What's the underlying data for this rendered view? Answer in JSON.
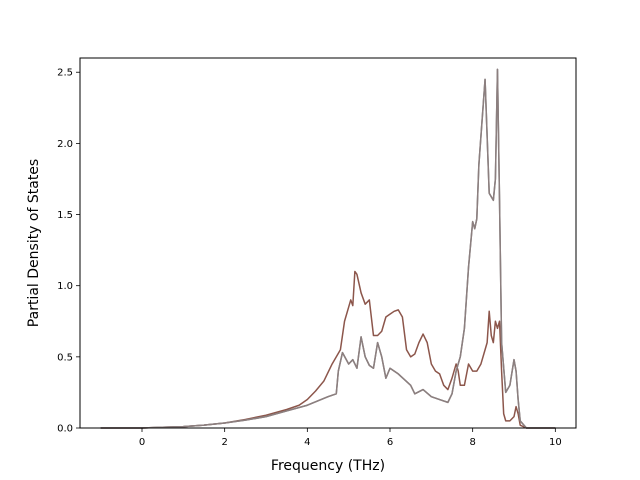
{
  "chart_data": {
    "type": "line",
    "title": "",
    "xlabel": "Frequency (THz)",
    "ylabel": "Partial Density of States",
    "xlim": [
      -1.5,
      10.5
    ],
    "ylim": [
      0.0,
      2.6
    ],
    "xticks": [
      0,
      2,
      4,
      6,
      8,
      10
    ],
    "yticks": [
      0.0,
      0.5,
      1.0,
      1.5,
      2.0,
      2.5
    ],
    "xtick_labels": [
      "0",
      "2",
      "4",
      "6",
      "8",
      "10"
    ],
    "ytick_labels": [
      "0.0",
      "0.5",
      "1.0",
      "1.5",
      "2.0",
      "2.5"
    ],
    "grid": false,
    "legend": false,
    "series": [
      {
        "color": "#8c564b",
        "x": [
          -1,
          0,
          0.5,
          1,
          1.5,
          2,
          2.5,
          3,
          3.5,
          3.8,
          4,
          4.2,
          4.4,
          4.6,
          4.8,
          4.9,
          5.0,
          5.05,
          5.1,
          5.15,
          5.2,
          5.3,
          5.4,
          5.5,
          5.6,
          5.7,
          5.8,
          5.9,
          6.0,
          6.1,
          6.2,
          6.3,
          6.4,
          6.5,
          6.6,
          6.7,
          6.8,
          6.9,
          7.0,
          7.1,
          7.2,
          7.3,
          7.4,
          7.5,
          7.6,
          7.65,
          7.7,
          7.8,
          7.9,
          8.0,
          8.1,
          8.2,
          8.3,
          8.35,
          8.4,
          8.45,
          8.5,
          8.55,
          8.6,
          8.65,
          8.7,
          8.75,
          8.8,
          8.9,
          9.0,
          9.05,
          9.1,
          9.15,
          9.3,
          10.0
        ],
        "y": [
          0.0,
          0.0,
          0.005,
          0.01,
          0.02,
          0.035,
          0.06,
          0.09,
          0.13,
          0.16,
          0.2,
          0.26,
          0.33,
          0.45,
          0.55,
          0.75,
          0.85,
          0.9,
          0.86,
          1.1,
          1.08,
          0.95,
          0.87,
          0.9,
          0.65,
          0.65,
          0.68,
          0.78,
          0.8,
          0.82,
          0.83,
          0.78,
          0.55,
          0.5,
          0.52,
          0.6,
          0.66,
          0.6,
          0.45,
          0.4,
          0.38,
          0.3,
          0.27,
          0.35,
          0.45,
          0.4,
          0.3,
          0.3,
          0.45,
          0.4,
          0.4,
          0.45,
          0.55,
          0.6,
          0.82,
          0.65,
          0.6,
          0.75,
          0.7,
          0.75,
          0.4,
          0.1,
          0.05,
          0.05,
          0.08,
          0.15,
          0.1,
          0.02,
          0.0,
          0.0
        ]
      },
      {
        "color": "#7f7f7f",
        "x": [
          -1,
          0,
          0.5,
          1,
          1.5,
          2,
          2.5,
          3,
          3.5,
          4,
          4.5,
          4.7,
          4.75,
          4.85,
          5.0,
          5.1,
          5.2,
          5.3,
          5.4,
          5.5,
          5.6,
          5.7,
          5.8,
          5.9,
          6.0,
          6.2,
          6.5,
          6.6,
          6.8,
          7.0,
          7.2,
          7.4,
          7.5,
          7.6,
          7.7,
          7.8,
          7.9,
          8.0,
          8.05,
          8.1,
          8.15,
          8.2,
          8.3,
          8.4,
          8.5,
          8.55,
          8.6,
          8.65,
          8.7,
          8.8,
          8.9,
          9.0,
          9.05,
          9.1,
          9.15,
          9.3,
          10.0
        ],
        "y": [
          0.0,
          0.0,
          0.005,
          0.01,
          0.02,
          0.035,
          0.055,
          0.08,
          0.12,
          0.16,
          0.22,
          0.24,
          0.4,
          0.53,
          0.45,
          0.48,
          0.42,
          0.64,
          0.5,
          0.44,
          0.42,
          0.6,
          0.5,
          0.35,
          0.42,
          0.38,
          0.3,
          0.24,
          0.27,
          0.22,
          0.2,
          0.18,
          0.24,
          0.4,
          0.5,
          0.7,
          1.13,
          1.45,
          1.4,
          1.47,
          1.85,
          2.05,
          2.45,
          1.65,
          1.6,
          1.75,
          2.52,
          1.6,
          0.6,
          0.25,
          0.3,
          0.48,
          0.4,
          0.2,
          0.05,
          0.0,
          0.0
        ]
      },
      {
        "color": "#8c7f7f",
        "x": [
          -1,
          0,
          0.5,
          1,
          1.5,
          2,
          2.5,
          3,
          3.5,
          4,
          4.5,
          4.7,
          4.75,
          4.85,
          5.0,
          5.1,
          5.2,
          5.3,
          5.4,
          5.5,
          5.6,
          5.7,
          5.8,
          5.9,
          6.0,
          6.2,
          6.5,
          6.6,
          6.8,
          7.0,
          7.2,
          7.4,
          7.5,
          7.6,
          7.7,
          7.8,
          7.9,
          8.0,
          8.05,
          8.1,
          8.15,
          8.2,
          8.3,
          8.4,
          8.5,
          8.55,
          8.6,
          8.65,
          8.7,
          8.8,
          8.9,
          9.0,
          9.05,
          9.1,
          9.15,
          9.3,
          10.0
        ],
        "y": [
          0.0,
          0.0,
          0.005,
          0.01,
          0.02,
          0.035,
          0.055,
          0.08,
          0.12,
          0.16,
          0.22,
          0.24,
          0.4,
          0.53,
          0.45,
          0.48,
          0.42,
          0.64,
          0.5,
          0.44,
          0.42,
          0.6,
          0.5,
          0.35,
          0.42,
          0.38,
          0.3,
          0.24,
          0.27,
          0.22,
          0.2,
          0.18,
          0.24,
          0.4,
          0.5,
          0.7,
          1.13,
          1.45,
          1.4,
          1.47,
          1.85,
          2.05,
          2.45,
          1.65,
          1.6,
          1.75,
          2.52,
          1.6,
          0.6,
          0.25,
          0.3,
          0.48,
          0.4,
          0.2,
          0.05,
          0.0,
          0.0
        ]
      }
    ]
  }
}
